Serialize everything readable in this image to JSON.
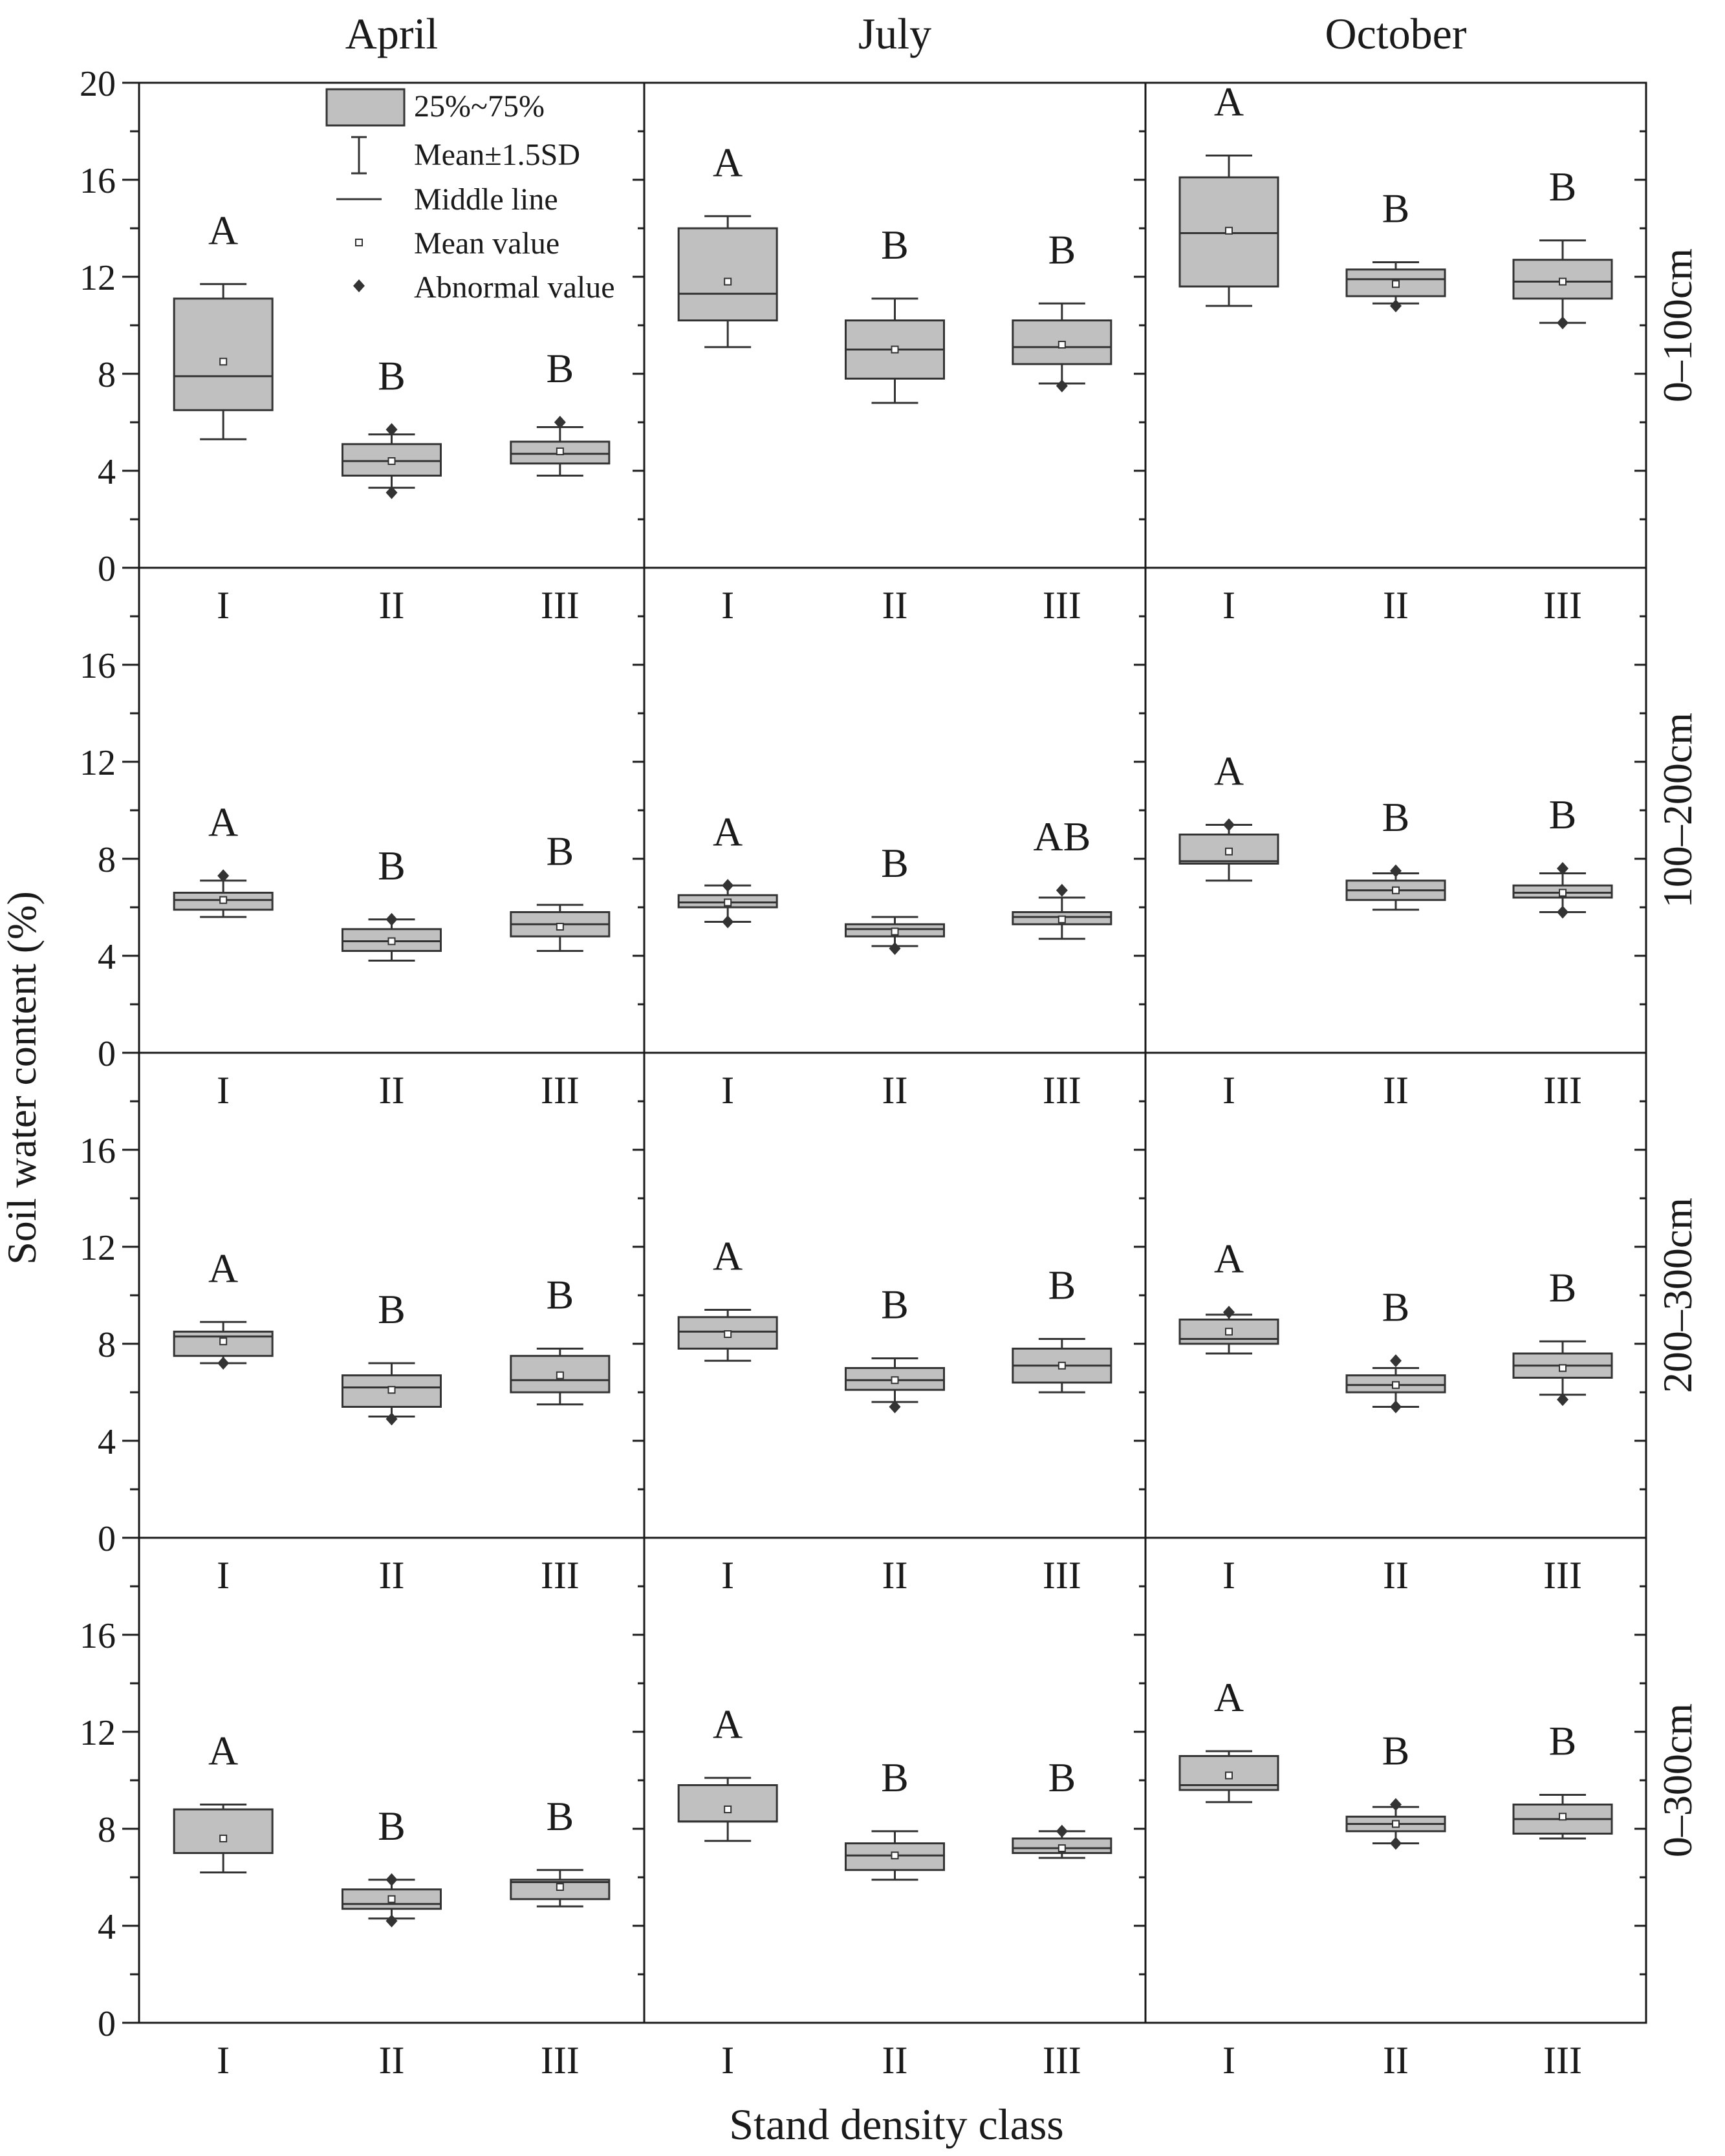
{
  "figure": {
    "xlabel": "Stand density class",
    "ylabel": "Soil water content (%)",
    "columns": [
      "April",
      "July",
      "October"
    ],
    "rows": [
      "0–100cm",
      "100–200cm",
      "200–300cm",
      "0–300cm"
    ]
  },
  "legend": {
    "box": "25%~75%",
    "whisker": "Mean±1.5SD",
    "median": "Middle line",
    "mean": "Mean value",
    "outlier": "Abnormal value"
  },
  "colors": {
    "box_fill": "#c0c0c0",
    "stroke": "#333333"
  },
  "chart_data": {
    "type": "box",
    "categories": [
      "I",
      "II",
      "III"
    ],
    "ylim": [
      0,
      20
    ],
    "yticks": [
      0,
      4,
      8,
      12,
      16,
      20
    ],
    "yticks_shown_lower_rows": [
      0,
      4,
      8,
      12,
      16
    ],
    "grid": false,
    "legend_position": "top-left panel",
    "panels": [
      {
        "col": "April",
        "row": "0–100cm",
        "boxes": [
          {
            "cat": "I",
            "q1": 6.5,
            "median": 7.9,
            "q3": 11.1,
            "mean": 8.5,
            "wlow": 5.3,
            "whigh": 11.7,
            "outliers": [],
            "letter": "A"
          },
          {
            "cat": "II",
            "q1": 3.8,
            "median": 4.4,
            "q3": 5.1,
            "mean": 4.4,
            "wlow": 3.3,
            "whigh": 5.5,
            "outliers": [
              5.7,
              3.1
            ],
            "letter": "B"
          },
          {
            "cat": "III",
            "q1": 4.3,
            "median": 4.7,
            "q3": 5.2,
            "mean": 4.8,
            "wlow": 3.8,
            "whigh": 5.8,
            "outliers": [
              6.0
            ],
            "letter": "B"
          }
        ]
      },
      {
        "col": "July",
        "row": "0–100cm",
        "boxes": [
          {
            "cat": "I",
            "q1": 10.2,
            "median": 11.3,
            "q3": 14.0,
            "mean": 11.8,
            "wlow": 9.1,
            "whigh": 14.5,
            "outliers": [],
            "letter": "A"
          },
          {
            "cat": "II",
            "q1": 7.8,
            "median": 9.0,
            "q3": 10.2,
            "mean": 9.0,
            "wlow": 6.8,
            "whigh": 11.1,
            "outliers": [],
            "letter": "B"
          },
          {
            "cat": "III",
            "q1": 8.4,
            "median": 9.1,
            "q3": 10.2,
            "mean": 9.2,
            "wlow": 7.6,
            "whigh": 10.9,
            "outliers": [
              7.5
            ],
            "letter": "B"
          }
        ]
      },
      {
        "col": "October",
        "row": "0–100cm",
        "boxes": [
          {
            "cat": "I",
            "q1": 11.6,
            "median": 13.8,
            "q3": 16.1,
            "mean": 13.9,
            "wlow": 10.8,
            "whigh": 17.0,
            "outliers": [],
            "letter": "A"
          },
          {
            "cat": "II",
            "q1": 11.2,
            "median": 11.9,
            "q3": 12.3,
            "mean": 11.7,
            "wlow": 10.9,
            "whigh": 12.6,
            "outliers": [
              10.8
            ],
            "letter": "B"
          },
          {
            "cat": "III",
            "q1": 11.1,
            "median": 11.8,
            "q3": 12.7,
            "mean": 11.8,
            "wlow": 10.1,
            "whigh": 13.5,
            "outliers": [
              10.1
            ],
            "letter": "B"
          }
        ]
      },
      {
        "col": "April",
        "row": "100–200cm",
        "boxes": [
          {
            "cat": "I",
            "q1": 5.9,
            "median": 6.3,
            "q3": 6.6,
            "mean": 6.3,
            "wlow": 5.6,
            "whigh": 7.1,
            "outliers": [
              7.3
            ],
            "letter": "A"
          },
          {
            "cat": "II",
            "q1": 4.2,
            "median": 4.6,
            "q3": 5.1,
            "mean": 4.6,
            "wlow": 3.8,
            "whigh": 5.5,
            "outliers": [
              5.5
            ],
            "letter": "B"
          },
          {
            "cat": "III",
            "q1": 4.8,
            "median": 5.3,
            "q3": 5.8,
            "mean": 5.2,
            "wlow": 4.2,
            "whigh": 6.1,
            "outliers": [],
            "letter": "B"
          }
        ]
      },
      {
        "col": "July",
        "row": "100–200cm",
        "boxes": [
          {
            "cat": "I",
            "q1": 6.0,
            "median": 6.2,
            "q3": 6.5,
            "mean": 6.2,
            "wlow": 5.4,
            "whigh": 6.9,
            "outliers": [
              6.9,
              5.4
            ],
            "letter": "A"
          },
          {
            "cat": "II",
            "q1": 4.8,
            "median": 5.1,
            "q3": 5.3,
            "mean": 5.0,
            "wlow": 4.4,
            "whigh": 5.6,
            "outliers": [
              4.3
            ],
            "letter": "B"
          },
          {
            "cat": "III",
            "q1": 5.3,
            "median": 5.6,
            "q3": 5.8,
            "mean": 5.5,
            "wlow": 4.7,
            "whigh": 6.4,
            "outliers": [
              6.7
            ],
            "letter": "AB"
          }
        ]
      },
      {
        "col": "October",
        "row": "100–200cm",
        "boxes": [
          {
            "cat": "I",
            "q1": 7.8,
            "median": 7.9,
            "q3": 9.0,
            "mean": 8.3,
            "wlow": 7.1,
            "whigh": 9.4,
            "outliers": [
              9.4
            ],
            "letter": "A"
          },
          {
            "cat": "II",
            "q1": 6.3,
            "median": 6.7,
            "q3": 7.1,
            "mean": 6.7,
            "wlow": 5.9,
            "whigh": 7.4,
            "outliers": [
              7.5
            ],
            "letter": "B"
          },
          {
            "cat": "III",
            "q1": 6.4,
            "median": 6.6,
            "q3": 6.9,
            "mean": 6.6,
            "wlow": 5.8,
            "whigh": 7.4,
            "outliers": [
              7.6,
              5.8
            ],
            "letter": "B"
          }
        ]
      },
      {
        "col": "April",
        "row": "200–300cm",
        "boxes": [
          {
            "cat": "I",
            "q1": 7.5,
            "median": 8.3,
            "q3": 8.5,
            "mean": 8.1,
            "wlow": 7.2,
            "whigh": 8.9,
            "outliers": [
              7.2
            ],
            "letter": "A"
          },
          {
            "cat": "II",
            "q1": 5.4,
            "median": 6.2,
            "q3": 6.7,
            "mean": 6.1,
            "wlow": 5.0,
            "whigh": 7.2,
            "outliers": [
              4.9
            ],
            "letter": "B"
          },
          {
            "cat": "III",
            "q1": 6.0,
            "median": 6.5,
            "q3": 7.5,
            "mean": 6.7,
            "wlow": 5.5,
            "whigh": 7.8,
            "outliers": [],
            "letter": "B"
          }
        ]
      },
      {
        "col": "July",
        "row": "200–300cm",
        "boxes": [
          {
            "cat": "I",
            "q1": 7.8,
            "median": 8.5,
            "q3": 9.1,
            "mean": 8.4,
            "wlow": 7.3,
            "whigh": 9.4,
            "outliers": [],
            "letter": "A"
          },
          {
            "cat": "II",
            "q1": 6.1,
            "median": 6.5,
            "q3": 7.0,
            "mean": 6.5,
            "wlow": 5.6,
            "whigh": 7.4,
            "outliers": [
              5.4
            ],
            "letter": "B"
          },
          {
            "cat": "III",
            "q1": 6.4,
            "median": 7.1,
            "q3": 7.8,
            "mean": 7.1,
            "wlow": 6.0,
            "whigh": 8.2,
            "outliers": [],
            "letter": "B"
          }
        ]
      },
      {
        "col": "October",
        "row": "200–300cm",
        "boxes": [
          {
            "cat": "I",
            "q1": 8.0,
            "median": 8.2,
            "q3": 9.0,
            "mean": 8.5,
            "wlow": 7.6,
            "whigh": 9.2,
            "outliers": [
              9.3
            ],
            "letter": "A"
          },
          {
            "cat": "II",
            "q1": 6.0,
            "median": 6.3,
            "q3": 6.7,
            "mean": 6.3,
            "wlow": 5.4,
            "whigh": 7.0,
            "outliers": [
              7.3,
              5.4
            ],
            "letter": "B"
          },
          {
            "cat": "III",
            "q1": 6.6,
            "median": 7.1,
            "q3": 7.6,
            "mean": 7.0,
            "wlow": 5.9,
            "whigh": 8.1,
            "outliers": [
              5.7
            ],
            "letter": "B"
          }
        ]
      },
      {
        "col": "April",
        "row": "0–300cm",
        "boxes": [
          {
            "cat": "I",
            "q1": 7.0,
            "median": 7.0,
            "q3": 8.8,
            "mean": 7.6,
            "wlow": 6.2,
            "whigh": 9.0,
            "outliers": [],
            "letter": "A"
          },
          {
            "cat": "II",
            "q1": 4.7,
            "median": 4.9,
            "q3": 5.5,
            "mean": 5.1,
            "wlow": 4.3,
            "whigh": 5.9,
            "outliers": [
              5.9,
              4.2
            ],
            "letter": "B"
          },
          {
            "cat": "III",
            "q1": 5.1,
            "median": 5.8,
            "q3": 5.9,
            "mean": 5.6,
            "wlow": 4.8,
            "whigh": 6.3,
            "outliers": [],
            "letter": "B"
          }
        ]
      },
      {
        "col": "July",
        "row": "0–300cm",
        "boxes": [
          {
            "cat": "I",
            "q1": 8.3,
            "median": 8.3,
            "q3": 9.8,
            "mean": 8.8,
            "wlow": 7.5,
            "whigh": 10.1,
            "outliers": [],
            "letter": "A"
          },
          {
            "cat": "II",
            "q1": 6.3,
            "median": 6.9,
            "q3": 7.4,
            "mean": 6.9,
            "wlow": 5.9,
            "whigh": 7.9,
            "outliers": [],
            "letter": "B"
          },
          {
            "cat": "III",
            "q1": 7.0,
            "median": 7.2,
            "q3": 7.6,
            "mean": 7.2,
            "wlow": 6.8,
            "whigh": 7.9,
            "outliers": [
              7.9
            ],
            "letter": "B"
          }
        ]
      },
      {
        "col": "October",
        "row": "0–300cm",
        "boxes": [
          {
            "cat": "I",
            "q1": 9.6,
            "median": 9.8,
            "q3": 11.0,
            "mean": 10.2,
            "wlow": 9.1,
            "whigh": 11.2,
            "outliers": [],
            "letter": "A"
          },
          {
            "cat": "II",
            "q1": 7.9,
            "median": 8.2,
            "q3": 8.5,
            "mean": 8.2,
            "wlow": 7.4,
            "whigh": 8.9,
            "outliers": [
              9.0,
              7.4
            ],
            "letter": "B"
          },
          {
            "cat": "III",
            "q1": 7.8,
            "median": 8.4,
            "q3": 9.0,
            "mean": 8.5,
            "wlow": 7.6,
            "whigh": 9.4,
            "outliers": [],
            "letter": "B"
          }
        ]
      }
    ]
  }
}
